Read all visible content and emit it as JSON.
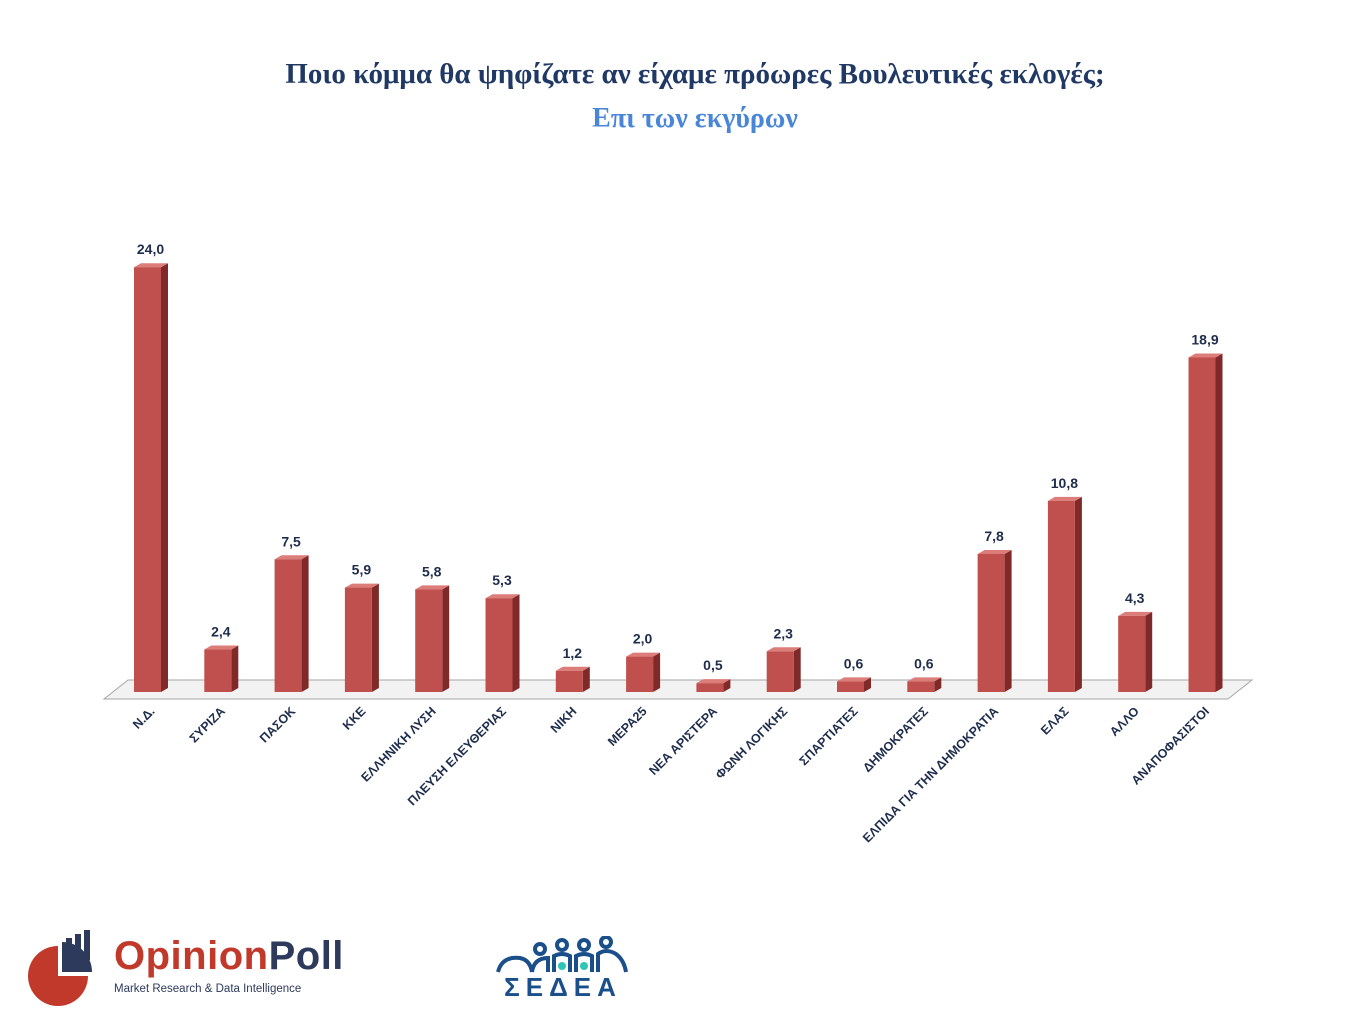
{
  "title": "Ποιο κόμμα θα ψηφίζατε αν είχαμε πρόωρες Βουλευτικές εκλογές;",
  "subtitle": "Επι των εκγύρων",
  "colors": {
    "bar_front": "#c0504d",
    "bar_side": "#7f2a28",
    "bar_top": "#dc7d7a",
    "title": "#1f3864",
    "subtitle": "#4a86d8",
    "labels": "#1f2d4d"
  },
  "chart_data": {
    "type": "bar",
    "title": "Ποιο κόμμα θα ψηφίζατε αν είχαμε πρόωρες Βουλευτικές εκλογές;",
    "subtitle": "Επι των εκγύρων",
    "categories": [
      "Ν.Δ.",
      "ΣΥΡΙΖΑ",
      "ΠΑΣΟΚ",
      "ΚΚΕ",
      "ΕΛΛΗΝΙΚΗ ΛΥΣΗ",
      "ΠΛΕΥΣΗ ΕΛΕΥΘΕΡΙΑΣ",
      "ΝΙΚΗ",
      "ΜΕΡΑ25",
      "ΝΕΑ ΑΡΙΣΤΕΡΑ",
      "ΦΩΝΗ ΛΟΓΙΚΗΣ",
      "ΣΠΑΡΤΙΑΤΕΣ",
      "ΔΗΜΟΚΡΑΤΕΣ",
      "ΕΛΠΙΔΑ ΓΙΑ ΤΗΝ ΔΗΜΟΚΡΑΤΙΑ",
      "ΕΛΑΣ",
      "ΑΛΛΟ",
      "ΑΝΑΠΟΦΑΣΙΣΤΟΙ"
    ],
    "values": [
      24.0,
      2.4,
      7.5,
      5.9,
      5.8,
      5.3,
      1.2,
      2.0,
      0.5,
      2.3,
      0.6,
      0.6,
      7.8,
      10.8,
      4.3,
      18.9
    ],
    "value_labels": [
      "24,0",
      "2,4",
      "7,5",
      "5,9",
      "5,8",
      "5,3",
      "1,2",
      "2,0",
      "0,5",
      "2,3",
      "0,6",
      "0,6",
      "7,8",
      "10,8",
      "4,3",
      "18,9"
    ],
    "xlabel": "",
    "ylabel": "",
    "grid": false,
    "legend": "none"
  },
  "logos": {
    "opinionpoll": {
      "brand_a": "Opinion",
      "brand_b": "Poll",
      "tagline": "Market Research & Data Intelligence"
    },
    "sedea": {
      "text": "ΣΕΔΕΑ"
    }
  }
}
